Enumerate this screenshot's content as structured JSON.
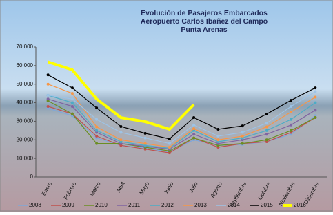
{
  "chart_data": {
    "type": "line",
    "title": [
      "Evolución de Pasajeros Embarcados",
      "Aeropuerto Carlos Ibañez del Campo",
      "Punta Arenas"
    ],
    "categories": [
      "Enero",
      "Febrero",
      "Marzo",
      "Abril",
      "Mayo",
      "Junio",
      "Julio",
      "Agosto",
      "Septiembre",
      "Octubre",
      "Noviembre",
      "Diciembre"
    ],
    "ylim": [
      0,
      70000
    ],
    "yticks": [
      0,
      {
        "value": 10000,
        "label": "10.000"
      },
      {
        "value": 20000,
        "label": "20.000"
      },
      {
        "value": 30000,
        "label": "30.000"
      },
      {
        "value": 40000,
        "label": "40.000"
      },
      {
        "value": 50000,
        "label": "50.000"
      },
      {
        "value": 60000,
        "label": "60.000"
      },
      {
        "value": 70000,
        "label": "70.000"
      }
    ],
    "series": [
      {
        "name": "2008",
        "color": "#7fa7d9",
        "values": [
          37000,
          33000,
          21000,
          17000,
          15500,
          13500,
          20000,
          17000,
          17500,
          19000,
          23000,
          33000
        ]
      },
      {
        "name": "2009",
        "color": "#c0504d",
        "values": [
          38000,
          34000,
          22000,
          17000,
          15000,
          13000,
          21000,
          16000,
          18000,
          19000,
          24000,
          32000
        ]
      },
      {
        "name": "2010",
        "color": "#6b8e23",
        "values": [
          41000,
          34000,
          18000,
          18000,
          16000,
          14000,
          21000,
          17000,
          18000,
          20000,
          25000,
          32000
        ]
      },
      {
        "name": "2011",
        "color": "#8064a2",
        "values": [
          42000,
          38000,
          24000,
          18000,
          16500,
          15000,
          23000,
          18000,
          20000,
          23000,
          28000,
          36000
        ]
      },
      {
        "name": "2012",
        "color": "#4bacc6",
        "values": [
          44000,
          40000,
          25000,
          19000,
          17000,
          15500,
          25000,
          19000,
          21000,
          25000,
          31000,
          40000
        ]
      },
      {
        "name": "2013",
        "color": "#f79646",
        "values": [
          50000,
          45000,
          27000,
          20000,
          18000,
          16000,
          26000,
          20000,
          22000,
          27000,
          35000,
          43000
        ]
      },
      {
        "name": "2014",
        "color": "#9dc3e6",
        "values": [
          44000,
          42000,
          31000,
          24000,
          21000,
          18000,
          28000,
          22000,
          24000,
          29000,
          38000,
          46000
        ]
      },
      {
        "name": "2015",
        "color": "#000000",
        "values": [
          55000,
          48000,
          37200,
          27200,
          23500,
          20500,
          32000,
          25700,
          27500,
          33900,
          41300,
          48000
        ]
      },
      {
        "name": "2016",
        "color": "#ffff00",
        "values": [
          62000,
          57700,
          42000,
          32000,
          29800,
          25700,
          39000,
          null,
          null,
          null,
          null,
          null
        ]
      }
    ]
  }
}
